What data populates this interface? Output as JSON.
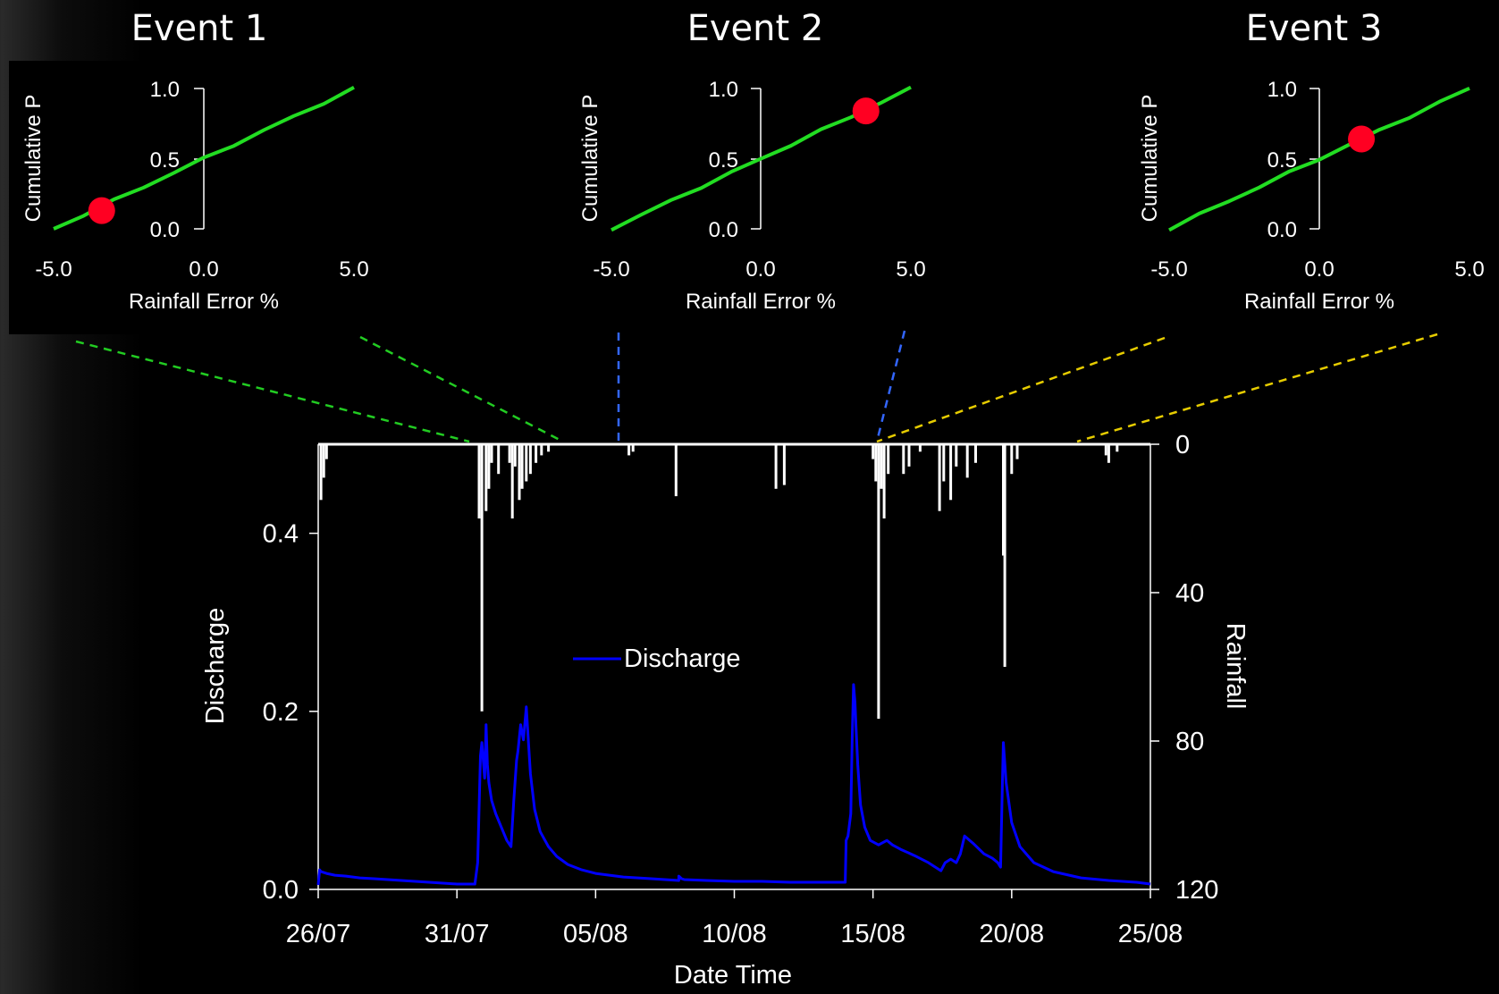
{
  "colors": {
    "background": "#000000",
    "cdf_line": "#22dd22",
    "marker": "#ff0022",
    "discharge": "#0000ff",
    "rainfall": "#ffffff",
    "link_event1": "#22cc22",
    "link_event2": "#3366ff",
    "link_event3": "#e6cc00"
  },
  "events": [
    {
      "title": "Event 1",
      "ylabel": "Cumulative P",
      "xlabel": "Rainfall Error %",
      "xticks": [
        "-5.0",
        "0.0",
        "5.0"
      ],
      "yticks": [
        "0.0",
        "0.5",
        "1.0"
      ],
      "marker_x": -3.4,
      "marker_y": 0.13
    },
    {
      "title": "Event 2",
      "ylabel": "Cumulative P",
      "xlabel": "Rainfall Error %",
      "xticks": [
        "-5.0",
        "0.0",
        "5.0"
      ],
      "yticks": [
        "0.0",
        "0.5",
        "1.0"
      ],
      "marker_x": 3.5,
      "marker_y": 0.84
    },
    {
      "title": "Event 3",
      "ylabel": "Cumulative P",
      "xlabel": "Rainfall Error %",
      "xticks": [
        "-5.0",
        "0.0",
        "5.0"
      ],
      "yticks": [
        "0.0",
        "0.5",
        "1.0"
      ],
      "marker_x": 1.4,
      "marker_y": 0.64
    }
  ],
  "chart_data": [
    {
      "type": "line",
      "panel": "Event 1",
      "xlabel": "Rainfall Error %",
      "ylabel": "Cumulative P",
      "xlim": [
        -5,
        5
      ],
      "ylim": [
        0,
        1
      ],
      "x": [
        -5,
        -4,
        -3,
        -2,
        -1,
        0,
        1,
        2,
        3,
        4,
        5
      ],
      "y": [
        0.0,
        0.1,
        0.2,
        0.3,
        0.4,
        0.5,
        0.6,
        0.7,
        0.8,
        0.9,
        1.0
      ],
      "highlight": {
        "x": -3.4,
        "y": 0.13
      }
    },
    {
      "type": "line",
      "panel": "Event 2",
      "xlabel": "Rainfall Error %",
      "ylabel": "Cumulative P",
      "xlim": [
        -5,
        5
      ],
      "ylim": [
        0,
        1
      ],
      "x": [
        -5,
        -4,
        -3,
        -2,
        -1,
        0,
        1,
        2,
        3,
        4,
        5
      ],
      "y": [
        0.0,
        0.1,
        0.2,
        0.3,
        0.4,
        0.5,
        0.6,
        0.7,
        0.8,
        0.9,
        1.0
      ],
      "highlight": {
        "x": 3.5,
        "y": 0.84
      }
    },
    {
      "type": "line",
      "panel": "Event 3",
      "xlabel": "Rainfall Error %",
      "ylabel": "Cumulative P",
      "xlim": [
        -5,
        5
      ],
      "ylim": [
        0,
        1
      ],
      "x": [
        -5,
        -4,
        -3,
        -2,
        -1,
        0,
        1,
        2,
        3,
        4,
        5
      ],
      "y": [
        0.0,
        0.1,
        0.2,
        0.3,
        0.4,
        0.5,
        0.6,
        0.7,
        0.8,
        0.9,
        1.0
      ],
      "highlight": {
        "x": 1.4,
        "y": 0.64
      }
    },
    {
      "type": "line",
      "panel": "main",
      "xlabel": "Date Time",
      "ylabel": "Discharge",
      "y2label": "Rainfall",
      "legend": [
        "Discharge"
      ],
      "legend_position": "center",
      "xlim": [
        0,
        30
      ],
      "ylim": [
        0,
        0.5
      ],
      "y2lim": [
        0,
        120
      ],
      "y2_inverted": true,
      "xticks": [
        {
          "x": 0,
          "label": "26/07"
        },
        {
          "x": 5,
          "label": "31/07"
        },
        {
          "x": 10,
          "label": "05/08"
        },
        {
          "x": 15,
          "label": "10/08"
        },
        {
          "x": 20,
          "label": "15/08"
        },
        {
          "x": 25,
          "label": "20/08"
        },
        {
          "x": 30,
          "label": "25/08"
        }
      ],
      "yticks": [
        "0.0",
        "0.2",
        "0.4"
      ],
      "y2ticks": [
        "0",
        "40",
        "80",
        "120"
      ],
      "series": [
        {
          "name": "Discharge",
          "x": [
            0,
            0.05,
            0.1,
            0.3,
            0.6,
            1,
            1.5,
            2,
            2.5,
            3,
            3.5,
            4,
            4.5,
            5,
            5.3,
            5.65,
            5.75,
            5.85,
            5.9,
            6.0,
            6.05,
            6.1,
            6.15,
            6.25,
            6.4,
            6.6,
            6.8,
            6.95,
            7.05,
            7.15,
            7.2,
            7.3,
            7.4,
            7.5,
            7.55,
            7.65,
            7.8,
            8.0,
            8.3,
            8.6,
            9,
            9.5,
            10,
            11,
            12,
            13,
            13,
            13.1,
            13.2,
            14,
            15,
            16,
            17,
            17.5,
            17.6,
            17.7,
            18.0,
            18.5,
            18.7,
            18.9,
            19.0,
            19.03,
            19.1,
            19.2,
            19.25,
            19.3,
            19.35,
            19.4,
            19.45,
            19.55,
            19.7,
            19.9,
            20.2,
            20.5,
            20.7,
            21,
            21.5,
            22,
            22.3,
            22.45,
            22.6,
            22.8,
            23.0,
            23.15,
            23.3,
            23.6,
            24.0,
            24.3,
            24.5,
            24.6,
            24.65,
            24.7,
            24.8,
            25.0,
            25.3,
            25.8,
            26.5,
            27.5,
            28.5,
            29.5,
            30
          ],
          "y": [
            0.005,
            0.022,
            0.02,
            0.018,
            0.016,
            0.015,
            0.013,
            0.012,
            0.011,
            0.01,
            0.009,
            0.008,
            0.007,
            0.006,
            0.006,
            0.006,
            0.03,
            0.15,
            0.165,
            0.125,
            0.185,
            0.14,
            0.12,
            0.1,
            0.085,
            0.07,
            0.055,
            0.048,
            0.1,
            0.145,
            0.155,
            0.185,
            0.168,
            0.205,
            0.18,
            0.13,
            0.09,
            0.065,
            0.048,
            0.037,
            0.028,
            0.022,
            0.018,
            0.014,
            0.012,
            0.01,
            0.015,
            0.012,
            0.011,
            0.01,
            0.009,
            0.009,
            0.008,
            0.008,
            0.008,
            0.008,
            0.008,
            0.008,
            0.008,
            0.008,
            0.008,
            0.055,
            0.06,
            0.085,
            0.17,
            0.23,
            0.21,
            0.175,
            0.14,
            0.095,
            0.07,
            0.055,
            0.05,
            0.055,
            0.05,
            0.045,
            0.038,
            0.03,
            0.024,
            0.021,
            0.03,
            0.034,
            0.03,
            0.04,
            0.06,
            0.052,
            0.04,
            0.035,
            0.03,
            0.025,
            0.1,
            0.165,
            0.12,
            0.075,
            0.048,
            0.03,
            0.02,
            0.013,
            0.01,
            0.008,
            0.006
          ]
        },
        {
          "name": "Rainfall",
          "kind": "hyetograph",
          "x": [
            0.1,
            0.2,
            0.3,
            5.8,
            5.9,
            6.05,
            6.15,
            6.25,
            6.5,
            6.9,
            7.0,
            7.1,
            7.25,
            7.35,
            7.5,
            7.65,
            7.85,
            8.05,
            8.3,
            11.2,
            11.35,
            12.9,
            16.5,
            16.8,
            20.0,
            20.1,
            20.2,
            20.3,
            20.4,
            20.55,
            21.1,
            21.3,
            21.7,
            22.4,
            22.55,
            22.8,
            23.0,
            23.4,
            23.7,
            24.7,
            24.75,
            25.0,
            25.2,
            28.4,
            28.5,
            28.8
          ],
          "values": [
            15,
            9,
            4,
            20,
            72,
            18,
            12,
            5,
            8,
            5,
            20,
            6,
            15,
            12,
            10,
            8,
            5,
            3,
            2,
            3,
            2,
            14,
            12,
            11,
            4,
            10,
            74,
            12,
            20,
            8,
            8,
            6,
            2,
            18,
            10,
            15,
            6,
            9,
            5,
            30,
            60,
            8,
            4,
            3,
            5,
            2
          ]
        }
      ]
    }
  ],
  "main_labels": {
    "xlabel": "Date Time",
    "ylabel": "Discharge",
    "y2label": "Rainfall",
    "legend": "Discharge"
  }
}
